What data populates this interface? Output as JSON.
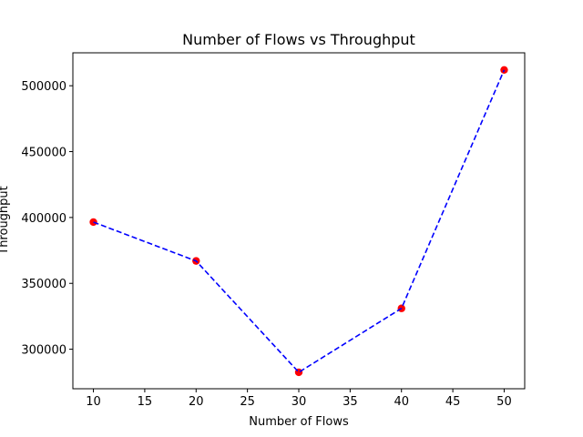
{
  "chart_data": {
    "type": "line",
    "title": "Number of Flows vs Throughput",
    "xlabel": "Number of Flows",
    "ylabel": "Throughput",
    "x": [
      10,
      20,
      30,
      40,
      50
    ],
    "series": [
      {
        "values": [
          396500,
          367000,
          282500,
          331000,
          512000
        ],
        "line_color": "#0000ff",
        "line_style": "dashed",
        "marker_color": "#ff0000"
      }
    ],
    "xlim": [
      8,
      52
    ],
    "ylim": [
      270000,
      525000
    ],
    "xticks": [
      10,
      15,
      20,
      25,
      30,
      35,
      40,
      45,
      50
    ],
    "yticks": [
      300000,
      350000,
      400000,
      450000,
      500000
    ],
    "xtick_labels": [
      "10",
      "15",
      "20",
      "25",
      "30",
      "35",
      "40",
      "45",
      "50"
    ],
    "ytick_labels": [
      "300000",
      "350000",
      "400000",
      "450000",
      "500000"
    ],
    "grid": false,
    "legend": "none"
  }
}
